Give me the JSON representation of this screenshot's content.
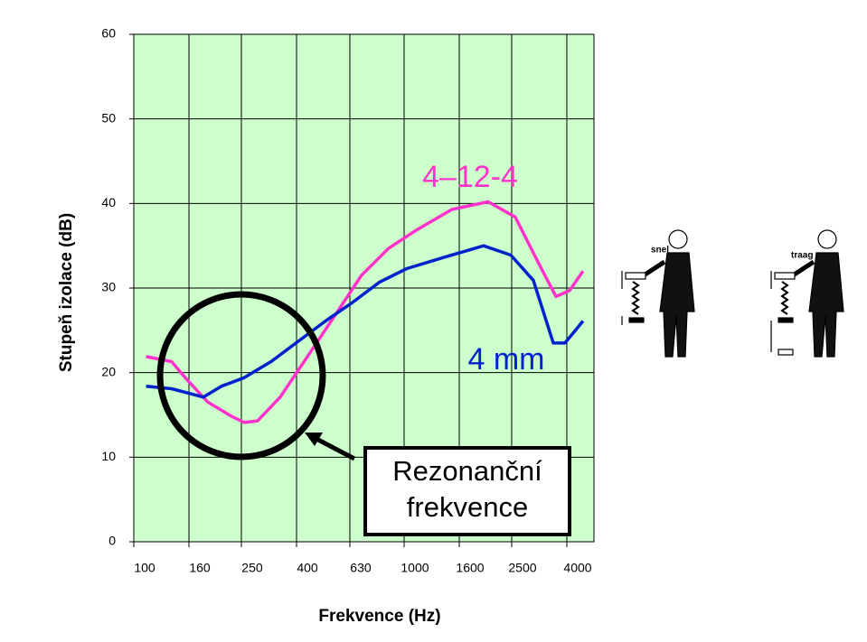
{
  "chart_data": {
    "type": "line",
    "xlabel": "Frekvence (Hz)",
    "ylabel": "Stupeň izolace (dB)",
    "xscale": "log",
    "xlim": [
      100,
      5040
    ],
    "ylim": [
      0,
      60
    ],
    "xticks": [
      100,
      160,
      250,
      400,
      630,
      1000,
      1600,
      2500,
      4000
    ],
    "yticks": [
      0,
      10,
      20,
      30,
      40,
      50,
      60
    ],
    "grid": true,
    "background": "#ccffcc",
    "series": [
      {
        "name": "4–12-4",
        "color": "#ff33cc",
        "x": [
          111,
          138,
          157,
          188,
          228,
          256,
          287,
          348,
          439,
          553,
          696,
          877,
          1105,
          1504,
          2047,
          2577,
          3126,
          3648,
          4093,
          4592
        ],
        "values": [
          21.9,
          21.3,
          19.2,
          16.5,
          14.9,
          14.1,
          14.3,
          17.1,
          21.9,
          26.7,
          31.5,
          34.7,
          36.8,
          39.3,
          40.2,
          38.4,
          33.1,
          29,
          29.7,
          32
        ]
      },
      {
        "name": "4 mm",
        "color": "#0022cc",
        "x": [
          111,
          138,
          181,
          211,
          256,
          322,
          406,
          512,
          645,
          812,
          1023,
          1393,
          1968,
          2482,
          3009,
          3565,
          3937,
          4592
        ],
        "values": [
          18.4,
          18.1,
          17.1,
          18.4,
          19.4,
          21.3,
          23.7,
          26.1,
          28.3,
          30.7,
          32.3,
          33.6,
          35,
          33.9,
          30.9,
          23.5,
          23.5,
          26.1
        ]
      }
    ],
    "annotations": [
      "Rezonanční frekvence",
      "snel",
      "traag"
    ]
  }
}
